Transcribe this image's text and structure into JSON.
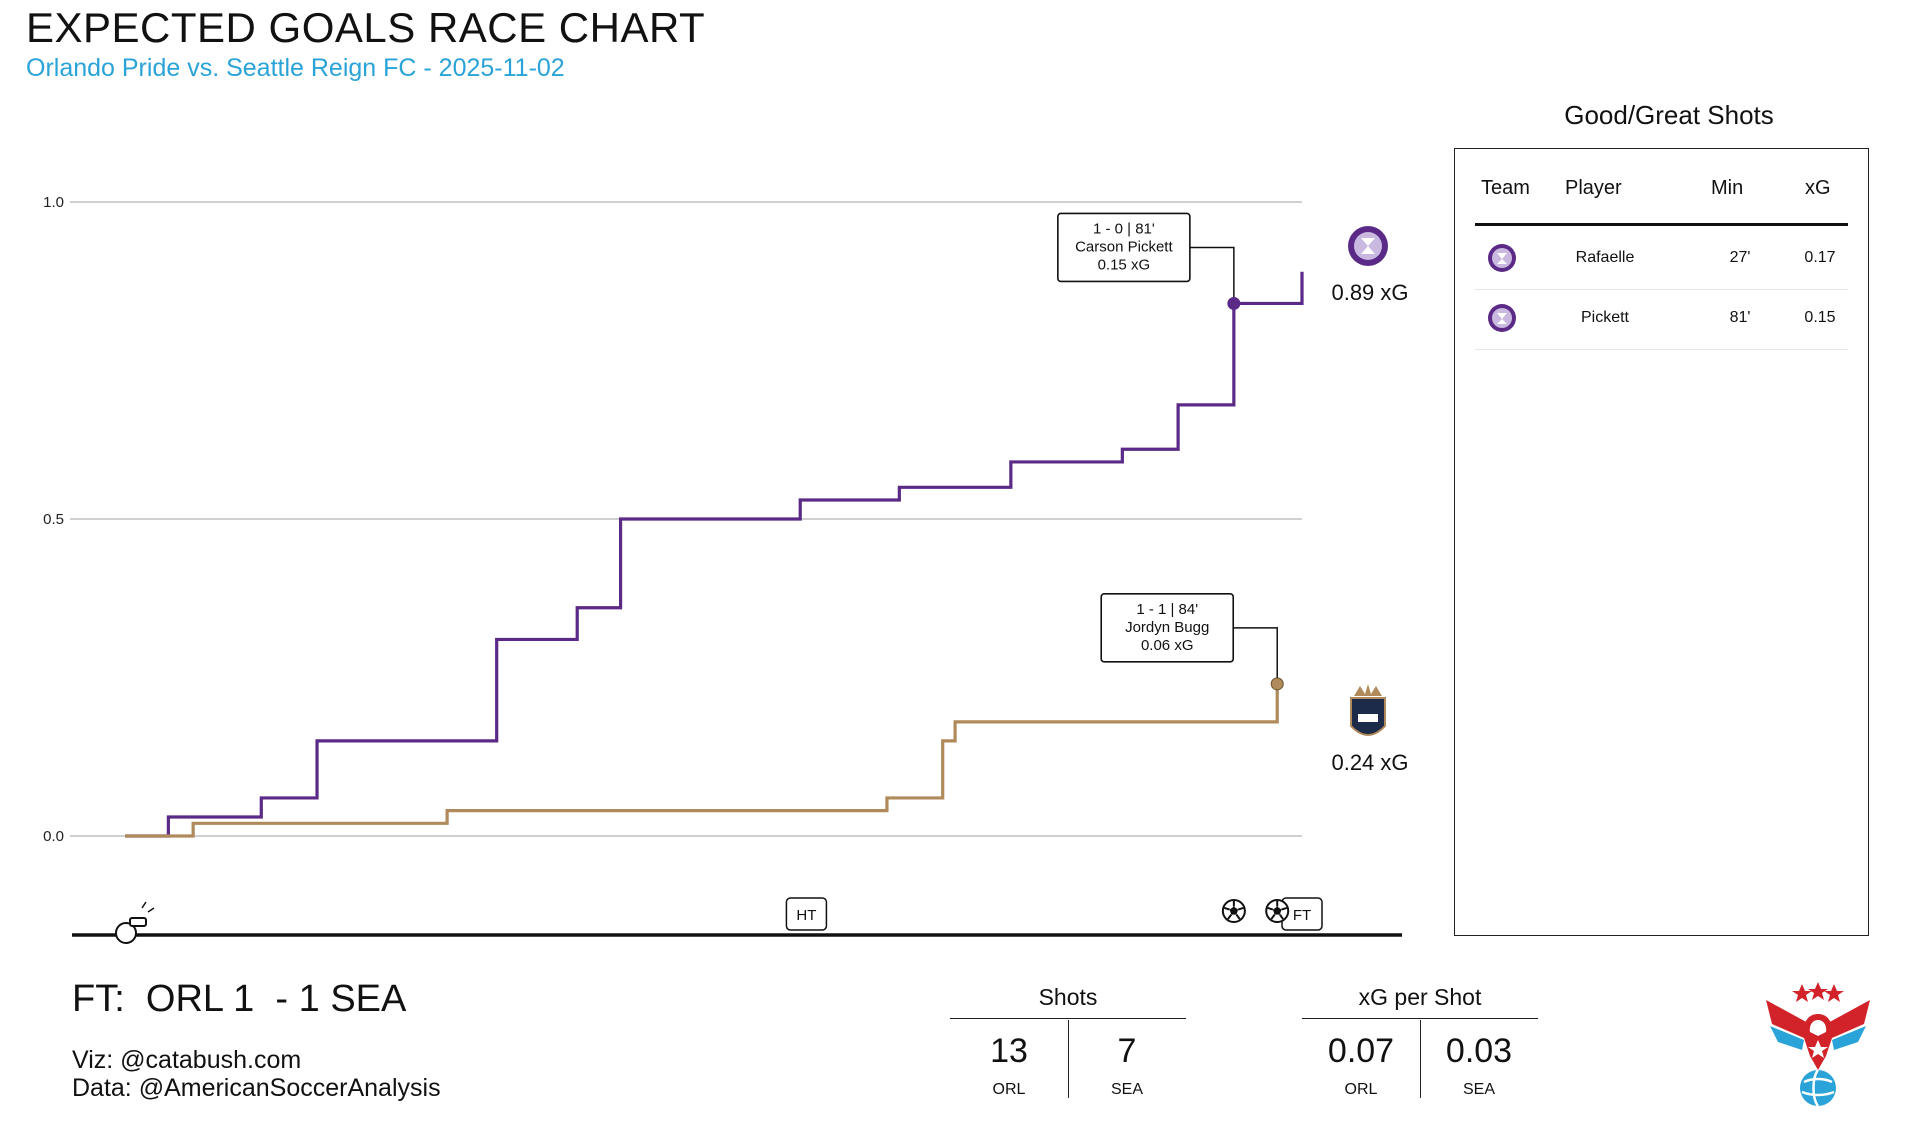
{
  "title": "EXPECTED GOALS RACE CHART",
  "subtitle": "Orlando Pride vs. Seattle Reign FC - 2025-11-02",
  "final_score": "FT:  ORL 1  - 1 SEA",
  "credits": {
    "viz": "Viz: @catabush.com",
    "data": "Data: @AmericanSoccerAnalysis"
  },
  "colors": {
    "orl": "#5b2a86",
    "sea": "#b08a5a",
    "subtitle": "#2aa3d8",
    "grid": "#d0d0d0"
  },
  "chart_data": {
    "type": "line",
    "title": "EXPECTED GOALS RACE CHART",
    "subtitle": "Orlando Pride vs. Seattle Reign FC - 2025-11-02",
    "xlabel": "",
    "ylabel": "",
    "xlim": [
      0,
      95
    ],
    "ylim": [
      -0.12,
      1.05
    ],
    "y_ticks": [
      0.0,
      0.5,
      1.0
    ],
    "y_tick_labels": [
      "0.0",
      "0.5",
      "1.0"
    ],
    "grid": true,
    "step": true,
    "series": [
      {
        "team": "ORL",
        "color": "#5b2a86",
        "end_label": "0.89 xG",
        "final_xg": 0.89,
        "x": [
          0,
          3.5,
          11,
          15.5,
          30,
          36.5,
          40,
          54.5,
          62.5,
          71.5,
          80.5,
          85,
          89.5,
          95
        ],
        "y": [
          0,
          0.03,
          0.06,
          0.15,
          0.31,
          0.36,
          0.5,
          0.53,
          0.55,
          0.59,
          0.61,
          0.68,
          0.84,
          0.89
        ]
      },
      {
        "team": "SEA",
        "color": "#b08a5a",
        "end_label": "0.24 xG",
        "final_xg": 0.24,
        "x": [
          0,
          5.5,
          26,
          61.5,
          66,
          67,
          93
        ],
        "y": [
          0,
          0.02,
          0.04,
          0.06,
          0.15,
          0.18,
          0.24
        ]
      }
    ],
    "goal_annotations": [
      {
        "team": "ORL",
        "minute": 89.5,
        "xg_at": 0.84,
        "score": "1 - 0  |  81'",
        "player": "Carson Pickett",
        "shot_xg": "0.15 xG"
      },
      {
        "team": "SEA",
        "minute": 93,
        "xg_at": 0.24,
        "score": "1 - 1  |  84'",
        "player": "Jordyn Bugg",
        "shot_xg": "0.06 xG"
      }
    ],
    "timeline": {
      "ht_label": "HT",
      "ht_minute": 55,
      "ft_label": "FT",
      "ft_minute": 95,
      "goal_minutes": [
        89.5,
        93
      ]
    }
  },
  "shots_panel": {
    "title": "Good/Great Shots",
    "headers": {
      "team": "Team",
      "player": "Player",
      "min": "Min",
      "xg": "xG"
    },
    "rows": [
      {
        "team": "ORL",
        "player": "Rafaelle",
        "min": "27'",
        "xg": "0.17"
      },
      {
        "team": "ORL",
        "player": "Pickett",
        "min": "81'",
        "xg": "0.15"
      }
    ]
  },
  "stats": [
    {
      "title": "Shots",
      "orl_value": "13",
      "sea_value": "7",
      "orl_label": "ORL",
      "sea_label": "SEA"
    },
    {
      "title": "xG per Shot",
      "orl_value": "0.07",
      "sea_value": "0.03",
      "orl_label": "ORL",
      "sea_label": "SEA"
    }
  ]
}
